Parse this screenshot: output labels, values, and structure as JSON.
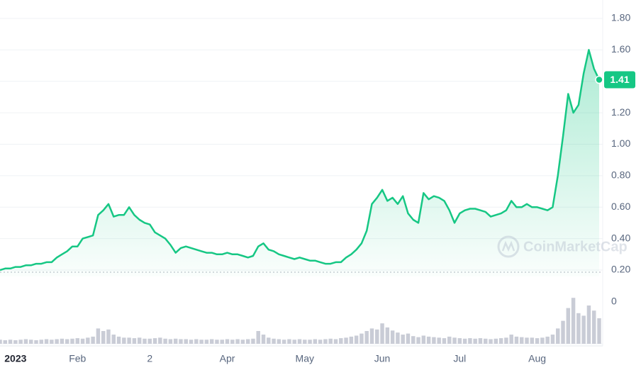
{
  "chart_data": {
    "type": "line",
    "color": "#16c784",
    "values": [
      0.2,
      0.21,
      0.21,
      0.22,
      0.22,
      0.23,
      0.23,
      0.24,
      0.24,
      0.25,
      0.25,
      0.28,
      0.3,
      0.32,
      0.35,
      0.35,
      0.4,
      0.41,
      0.42,
      0.55,
      0.58,
      0.62,
      0.54,
      0.55,
      0.55,
      0.6,
      0.55,
      0.52,
      0.5,
      0.49,
      0.44,
      0.42,
      0.4,
      0.36,
      0.31,
      0.34,
      0.35,
      0.34,
      0.33,
      0.32,
      0.31,
      0.31,
      0.3,
      0.3,
      0.31,
      0.3,
      0.3,
      0.29,
      0.28,
      0.29,
      0.35,
      0.37,
      0.33,
      0.32,
      0.3,
      0.29,
      0.28,
      0.27,
      0.28,
      0.27,
      0.26,
      0.26,
      0.25,
      0.24,
      0.24,
      0.25,
      0.25,
      0.28,
      0.3,
      0.33,
      0.37,
      0.45,
      0.62,
      0.66,
      0.71,
      0.64,
      0.66,
      0.62,
      0.67,
      0.56,
      0.52,
      0.5,
      0.69,
      0.65,
      0.67,
      0.66,
      0.64,
      0.58,
      0.5,
      0.56,
      0.58,
      0.59,
      0.59,
      0.58,
      0.57,
      0.54,
      0.55,
      0.56,
      0.58,
      0.64,
      0.6,
      0.6,
      0.62,
      0.6,
      0.6,
      0.59,
      0.58,
      0.6,
      0.8,
      1.05,
      1.32,
      1.2,
      1.25,
      1.45,
      1.6,
      1.48,
      1.41
    ],
    "ylim": [
      0.16,
      1.9
    ],
    "yticks": [
      {
        "value": 0.2,
        "label": "0.20"
      },
      {
        "value": 0.4,
        "label": "0.40"
      },
      {
        "value": 0.6,
        "label": "0.60"
      },
      {
        "value": 0.8,
        "label": "0.80"
      },
      {
        "value": 1.0,
        "label": "1.00"
      },
      {
        "value": 1.2,
        "label": "1.20"
      },
      {
        "value": 1.4,
        "label": "1.40"
      },
      {
        "value": 1.6,
        "label": "1.60"
      },
      {
        "value": 1.8,
        "label": "1.80"
      }
    ],
    "xticks": [
      {
        "value": 3,
        "label": "2023"
      },
      {
        "value": 15,
        "label": "Feb"
      },
      {
        "value": 29,
        "label": "2"
      },
      {
        "value": 44,
        "label": "Apr"
      },
      {
        "value": 59,
        "label": "May"
      },
      {
        "value": 74,
        "label": "Jun"
      },
      {
        "value": 89,
        "label": "Jul"
      },
      {
        "value": 104,
        "label": "Aug"
      }
    ],
    "current_price": 1.41,
    "watermark": "CoinMarketCap",
    "grid": true,
    "volume": {
      "color": "#c9ccd6",
      "ylim": [
        0,
        100
      ],
      "yticks": [
        0
      ],
      "values": [
        8,
        7,
        8,
        7,
        8,
        9,
        8,
        7,
        8,
        9,
        8,
        9,
        10,
        9,
        10,
        11,
        10,
        12,
        14,
        30,
        25,
        28,
        18,
        14,
        12,
        12,
        11,
        12,
        10,
        10,
        11,
        12,
        10,
        9,
        10,
        9,
        9,
        8,
        9,
        8,
        8,
        9,
        8,
        8,
        9,
        8,
        9,
        8,
        9,
        10,
        25,
        18,
        12,
        10,
        9,
        8,
        9,
        8,
        9,
        8,
        8,
        9,
        8,
        9,
        10,
        9,
        11,
        12,
        14,
        16,
        20,
        25,
        30,
        28,
        40,
        32,
        26,
        22,
        18,
        20,
        15,
        13,
        16,
        14,
        13,
        12,
        11,
        14,
        12,
        11,
        10,
        11,
        10,
        11,
        10,
        9,
        10,
        11,
        12,
        18,
        14,
        13,
        12,
        12,
        11,
        12,
        14,
        18,
        30,
        45,
        70,
        90,
        60,
        55,
        75,
        65,
        50
      ]
    }
  }
}
